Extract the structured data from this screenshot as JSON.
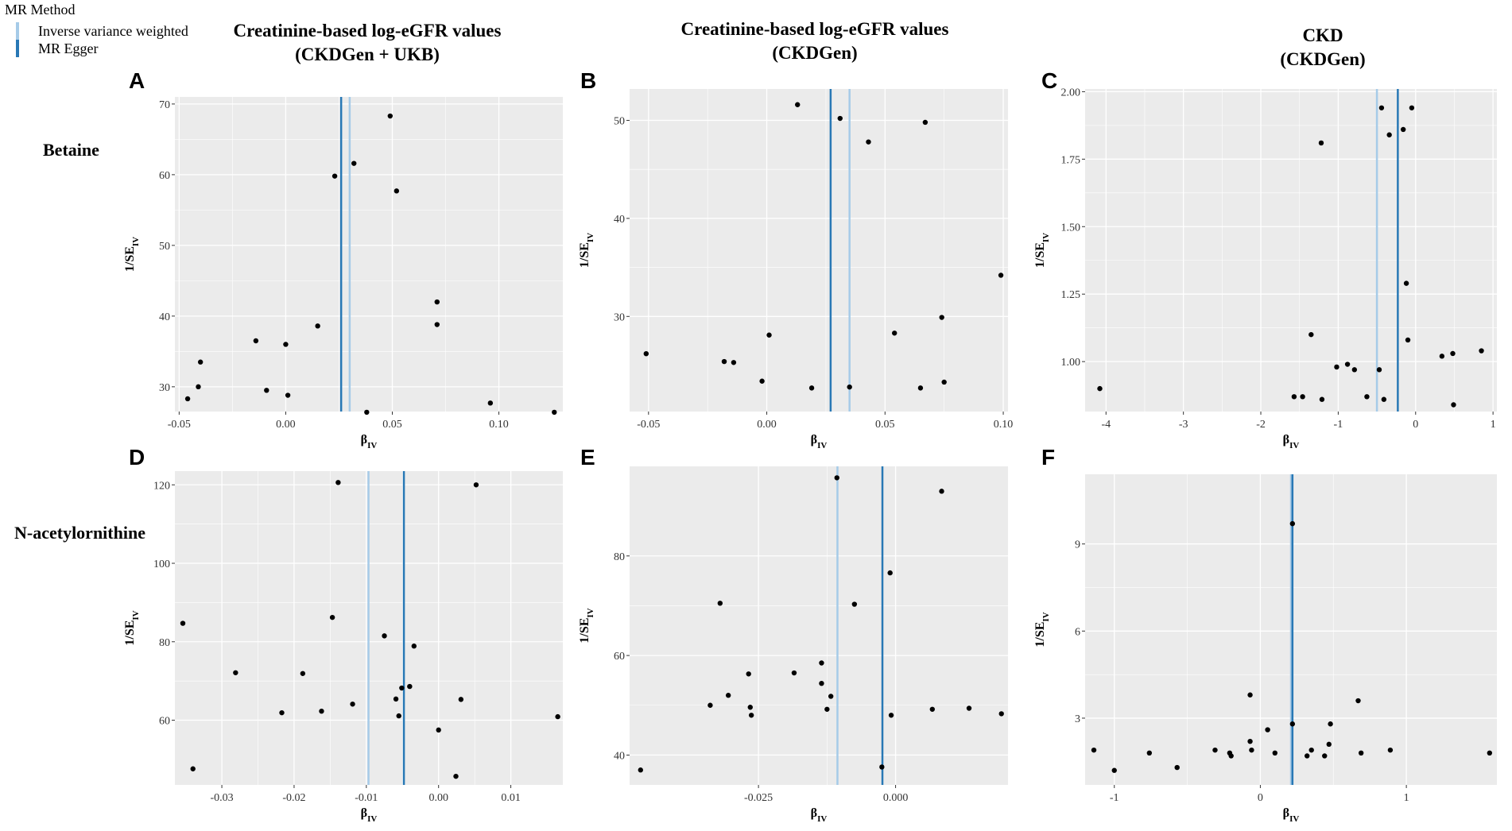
{
  "legend": {
    "title": "MR Method",
    "items": [
      {
        "label": "Inverse variance weighted",
        "color": "#a6cbe8"
      },
      {
        "label": "MR Egger",
        "color": "#2878b5"
      }
    ]
  },
  "columns": [
    {
      "line1": "Creatinine-based log-eGFR values",
      "line2": "(CKDGen + UKB)"
    },
    {
      "line1": "Creatinine-based log-eGFR values",
      "line2": "(CKDGen)"
    },
    {
      "line1": "CKD",
      "line2": "(CKDGen)"
    }
  ],
  "rows": [
    "Betaine",
    "N-acetylornithine"
  ],
  "colors": {
    "ivw": "#a6cbe8",
    "egger": "#2878b5",
    "panel_bg": "#ebebeb",
    "grid": "#ffffff",
    "point": "#000000"
  },
  "chart_data": [
    {
      "panel": "A",
      "type": "scatter",
      "xlabel": "β",
      "xlabel_sub": "IV",
      "ylabel": "1/SE",
      "ylabel_sub": "IV",
      "xlim": [
        -0.052,
        0.13
      ],
      "ylim": [
        26.5,
        71
      ],
      "xticks": [
        -0.05,
        0.0,
        0.05,
        0.1
      ],
      "xtick_labels": [
        "-0.05",
        "0.00",
        "0.05",
        "0.10"
      ],
      "yticks": [
        30,
        40,
        50,
        60,
        70
      ],
      "ytick_labels": [
        "30",
        "40",
        "50",
        "60",
        "70"
      ],
      "ivw": 0.03,
      "egger": 0.026,
      "points": [
        [
          -0.046,
          28.3
        ],
        [
          -0.041,
          30.0
        ],
        [
          -0.04,
          33.5
        ],
        [
          -0.014,
          36.5
        ],
        [
          -0.009,
          29.5
        ],
        [
          0.0,
          36.0
        ],
        [
          0.001,
          28.8
        ],
        [
          0.015,
          38.6
        ],
        [
          0.023,
          59.8
        ],
        [
          0.032,
          61.6
        ],
        [
          0.038,
          26.4
        ],
        [
          0.049,
          68.3
        ],
        [
          0.052,
          57.7
        ],
        [
          0.071,
          42.0
        ],
        [
          0.071,
          38.8
        ],
        [
          0.096,
          27.7
        ],
        [
          0.126,
          26.4
        ]
      ]
    },
    {
      "panel": "B",
      "type": "scatter",
      "xlabel": "β",
      "xlabel_sub": "IV",
      "ylabel": "1/SE",
      "ylabel_sub": "IV",
      "xlim": [
        -0.058,
        0.102
      ],
      "ylim": [
        20.3,
        53.2
      ],
      "xticks": [
        -0.05,
        0.0,
        0.05,
        0.1
      ],
      "xtick_labels": [
        "-0.05",
        "0.00",
        "0.05",
        "0.10"
      ],
      "yticks": [
        30,
        40,
        50
      ],
      "ytick_labels": [
        "30",
        "40",
        "50"
      ],
      "ivw": 0.035,
      "egger": 0.027,
      "points": [
        [
          -0.051,
          26.2
        ],
        [
          -0.018,
          25.4
        ],
        [
          -0.014,
          25.3
        ],
        [
          -0.002,
          23.4
        ],
        [
          0.001,
          28.1
        ],
        [
          0.013,
          51.6
        ],
        [
          0.019,
          22.7
        ],
        [
          0.031,
          50.2
        ],
        [
          0.035,
          22.8
        ],
        [
          0.043,
          47.8
        ],
        [
          0.054,
          28.3
        ],
        [
          0.065,
          22.7
        ],
        [
          0.067,
          49.8
        ],
        [
          0.074,
          29.9
        ],
        [
          0.075,
          23.3
        ],
        [
          0.099,
          34.2
        ]
      ]
    },
    {
      "panel": "C",
      "type": "scatter",
      "xlabel": "β",
      "xlabel_sub": "IV",
      "ylabel": "1/SE",
      "ylabel_sub": "IV",
      "xlim": [
        -4.27,
        1.05
      ],
      "ylim": [
        0.815,
        2.01
      ],
      "xticks": [
        -4,
        -3,
        -2,
        -1,
        0,
        1
      ],
      "xtick_labels": [
        "-4",
        "-3",
        "-2",
        "-1",
        "0",
        "1"
      ],
      "yticks": [
        1.0,
        1.25,
        1.5,
        1.75,
        2.0
      ],
      "ytick_labels": [
        "1.00",
        "1.25",
        "1.50",
        "1.75",
        "2.00"
      ],
      "ivw": -0.5,
      "egger": -0.23,
      "points": [
        [
          -4.08,
          0.9
        ],
        [
          -1.57,
          0.87
        ],
        [
          -1.46,
          0.87
        ],
        [
          -1.35,
          1.1
        ],
        [
          -1.21,
          0.86
        ],
        [
          -1.22,
          1.81
        ],
        [
          -1.02,
          0.98
        ],
        [
          -0.88,
          0.99
        ],
        [
          -0.79,
          0.97
        ],
        [
          -0.63,
          0.87
        ],
        [
          -0.47,
          0.97
        ],
        [
          -0.44,
          1.94
        ],
        [
          -0.41,
          0.86
        ],
        [
          -0.34,
          1.84
        ],
        [
          -0.16,
          1.86
        ],
        [
          -0.12,
          1.29
        ],
        [
          -0.1,
          1.08
        ],
        [
          -0.05,
          1.94
        ],
        [
          0.34,
          1.02
        ],
        [
          0.48,
          1.03
        ],
        [
          0.49,
          0.84
        ],
        [
          0.85,
          1.04
        ]
      ]
    },
    {
      "panel": "D",
      "type": "scatter",
      "xlabel": "β",
      "xlabel_sub": "IV",
      "ylabel": "1/SE",
      "ylabel_sub": "IV",
      "xlim": [
        -0.0365,
        0.0172
      ],
      "ylim": [
        43.5,
        123.5
      ],
      "xticks": [
        -0.03,
        -0.02,
        -0.01,
        0.0,
        0.01
      ],
      "xtick_labels": [
        "-0.03",
        "-0.02",
        "-0.01",
        "0.00",
        "0.01"
      ],
      "yticks": [
        60,
        80,
        100,
        120
      ],
      "ytick_labels": [
        "60",
        "80",
        "100",
        "120"
      ],
      "ivw": -0.0097,
      "egger": -0.0048,
      "points": [
        [
          -0.0354,
          84.7
        ],
        [
          -0.034,
          47.6
        ],
        [
          -0.0281,
          72.1
        ],
        [
          -0.0217,
          61.9
        ],
        [
          -0.0188,
          71.9
        ],
        [
          -0.0162,
          62.3
        ],
        [
          -0.0147,
          86.2
        ],
        [
          -0.0139,
          120.6
        ],
        [
          -0.0119,
          64.1
        ],
        [
          -0.0075,
          81.5
        ],
        [
          -0.0059,
          65.4
        ],
        [
          -0.0055,
          61.1
        ],
        [
          -0.0051,
          68.2
        ],
        [
          -0.004,
          68.6
        ],
        [
          -0.0034,
          78.9
        ],
        [
          0.0,
          57.5
        ],
        [
          0.0024,
          45.7
        ],
        [
          0.0031,
          65.3
        ],
        [
          0.0052,
          120.0
        ],
        [
          0.0165,
          60.9
        ]
      ]
    },
    {
      "panel": "E",
      "type": "scatter",
      "xlabel": "β",
      "xlabel_sub": "IV",
      "ylabel": "1/SE",
      "ylabel_sub": "IV",
      "xlim": [
        -0.0485,
        0.0205
      ],
      "ylim": [
        34.0,
        98.0
      ],
      "xticks": [
        -0.025,
        0.0
      ],
      "xtick_labels": [
        "-0.025",
        "0.000"
      ],
      "yticks": [
        40,
        60,
        80
      ],
      "ytick_labels": [
        "40",
        "60",
        "80"
      ],
      "ivw": -0.0106,
      "egger": -0.0024,
      "points": [
        [
          -0.0465,
          37.0
        ],
        [
          -0.0338,
          50.0
        ],
        [
          -0.032,
          70.5
        ],
        [
          -0.0305,
          52.0
        ],
        [
          -0.0268,
          56.3
        ],
        [
          -0.0265,
          49.6
        ],
        [
          -0.0263,
          48.0
        ],
        [
          -0.0185,
          56.5
        ],
        [
          -0.0135,
          58.5
        ],
        [
          -0.0135,
          54.4
        ],
        [
          -0.0125,
          49.2
        ],
        [
          -0.0118,
          51.8
        ],
        [
          -0.0107,
          95.7
        ],
        [
          -0.0075,
          70.3
        ],
        [
          -0.0025,
          37.6
        ],
        [
          -0.0008,
          48.0
        ],
        [
          -0.001,
          76.6
        ],
        [
          0.0067,
          49.2
        ],
        [
          0.0084,
          93.0
        ],
        [
          0.0134,
          49.4
        ],
        [
          0.0193,
          48.3
        ]
      ]
    },
    {
      "panel": "F",
      "type": "scatter",
      "xlabel": "β",
      "xlabel_sub": "IV",
      "ylabel": "1/SE",
      "ylabel_sub": "IV",
      "xlim": [
        -1.2,
        1.62
      ],
      "ylim": [
        0.7,
        11.4
      ],
      "xticks": [
        -1,
        0,
        1
      ],
      "xtick_labels": [
        "-1",
        "0",
        "1"
      ],
      "yticks": [
        3,
        6,
        9
      ],
      "ytick_labels": [
        "3",
        "6",
        "9"
      ],
      "ivw": 0.21,
      "egger": 0.22,
      "points": [
        [
          -1.14,
          1.9
        ],
        [
          -1.0,
          1.2
        ],
        [
          -0.76,
          1.8
        ],
        [
          -0.57,
          1.3
        ],
        [
          -0.31,
          1.9
        ],
        [
          -0.21,
          1.8
        ],
        [
          -0.2,
          1.7
        ],
        [
          -0.07,
          3.8
        ],
        [
          -0.07,
          2.2
        ],
        [
          -0.06,
          1.9
        ],
        [
          0.05,
          2.6
        ],
        [
          0.1,
          1.8
        ],
        [
          0.22,
          2.8
        ],
        [
          0.22,
          9.7
        ],
        [
          0.32,
          1.7
        ],
        [
          0.35,
          1.9
        ],
        [
          0.44,
          1.7
        ],
        [
          0.47,
          2.1
        ],
        [
          0.48,
          2.8
        ],
        [
          0.67,
          3.6
        ],
        [
          0.69,
          1.8
        ],
        [
          0.89,
          1.9
        ],
        [
          1.57,
          1.8
        ]
      ]
    }
  ]
}
